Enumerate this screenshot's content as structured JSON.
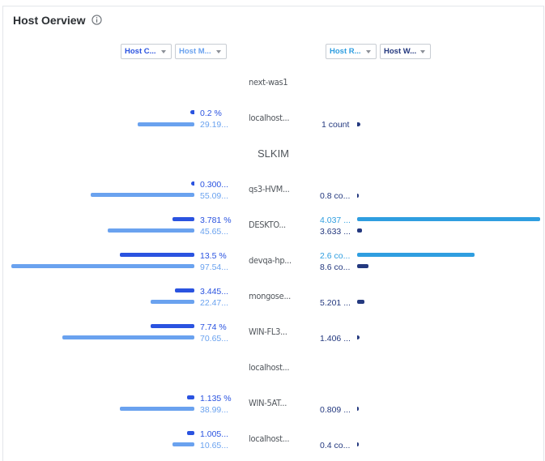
{
  "header": {
    "title": "Host Oerview"
  },
  "filters": {
    "cpu_label": "Host C...",
    "memory_label": "Host M...",
    "response_label": "Host R...",
    "wait_label": "Host W..."
  },
  "colors": {
    "cpu": "#2a53e0",
    "memory": "#6aa2ef",
    "response": "#2f9ee0",
    "wait": "#24397f"
  },
  "rows": [
    {
      "name": "next-was1"
    },
    {
      "name": "localhost...",
      "cpu_text": "0.2 %",
      "mem_text": "29.19...",
      "wait_text": "1 count"
    },
    {
      "name": "SLKIM"
    },
    {
      "name": "qs3-HVM...",
      "cpu_text": "0.300...",
      "mem_text": "55.09...",
      "wait_text": "0.8 co..."
    },
    {
      "name": "DESKTO...",
      "cpu_text": "3.781 %",
      "mem_text": "45.65...",
      "resp_text": "4.037 ...",
      "wait_text": "3.633 ..."
    },
    {
      "name": "devqa-hp...",
      "cpu_text": "13.5 %",
      "mem_text": "97.54...",
      "resp_text": "2.6 co...",
      "wait_text": "8.6 co..."
    },
    {
      "name": "mongose...",
      "cpu_text": "3.445...",
      "mem_text": "22.47...",
      "wait_text": "5.201 ..."
    },
    {
      "name": "WIN-FL3...",
      "cpu_text": "7.74 %",
      "mem_text": "70.65...",
      "wait_text": "1.406 ..."
    },
    {
      "name": "localhost..."
    },
    {
      "name": "WIN-5AT...",
      "cpu_text": "1.135 %",
      "mem_text": "38.99...",
      "wait_text": "0.809 ..."
    },
    {
      "name": "localhost...",
      "cpu_text": "1.005...",
      "mem_text": "10.65...",
      "wait_text": "0.4 co..."
    }
  ]
}
